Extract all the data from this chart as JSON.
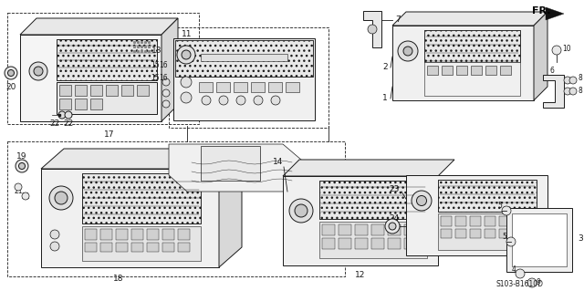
{
  "bg_color": "#ffffff",
  "line_color": "#1a1a1a",
  "text_color": "#1a1a1a",
  "diagram_code": "S103-B1610D",
  "fr_label": "FR.",
  "fill_light": "#f2f2f2",
  "fill_med": "#e0e0e0",
  "fill_dark": "#c8c8c8",
  "fill_hatched": "#d8d8d8"
}
